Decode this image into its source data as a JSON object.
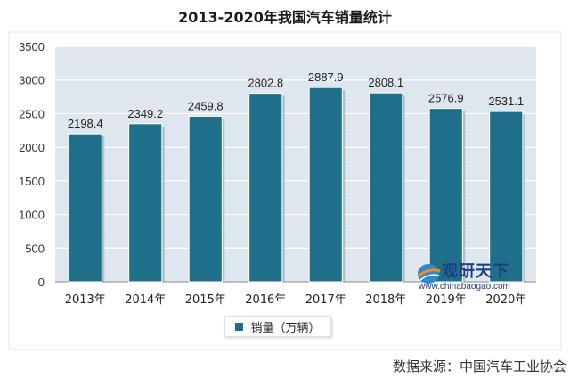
{
  "chart_data": {
    "type": "bar",
    "title": "2013-2020年我国汽车销量统计",
    "categories": [
      "2013年",
      "2014年",
      "2015年",
      "2016年",
      "2017年",
      "2018年",
      "2019年",
      "2020年"
    ],
    "series": [
      {
        "name": "销量（万辆）",
        "values": [
          2198.4,
          2349.2,
          2459.8,
          2802.8,
          2887.9,
          2808.1,
          2576.9,
          2531.1
        ]
      }
    ],
    "data_labels": [
      "2198.4",
      "2349.2",
      "2459.8",
      "2802.8",
      "2887.9",
      "2808.1",
      "2576.9",
      "2531.1"
    ],
    "ylim": [
      0,
      3500
    ],
    "yticks": [
      0,
      500,
      1000,
      1500,
      2000,
      2500,
      3000,
      3500
    ],
    "xlabel": "",
    "ylabel": "",
    "grid": true,
    "legend_position": "bottom-center",
    "colors": {
      "bar": "#1f6f8b",
      "plot_background": "#dfe8ee",
      "grid": "#ffffff"
    }
  },
  "watermark": {
    "name": "观研天下",
    "url": "www.chinabaogao.com"
  },
  "source": "数据来源：中国汽车工业协会"
}
